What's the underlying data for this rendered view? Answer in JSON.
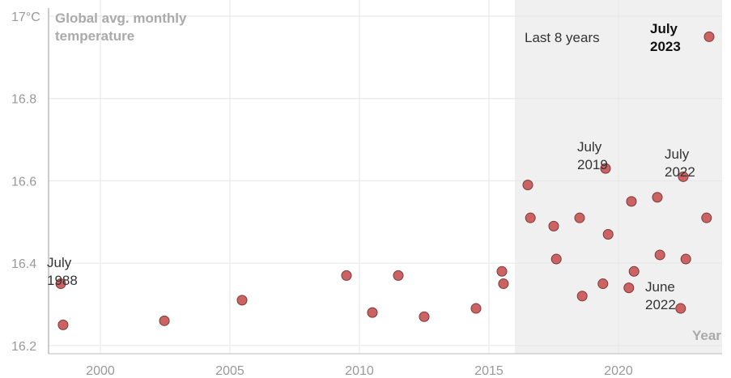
{
  "chart_data": {
    "type": "scatter",
    "title": "Global avg. monthly temperature",
    "x_label": "Year",
    "x": [
      1998.47,
      1998.56,
      2002.47,
      2005.47,
      2009.5,
      2010.5,
      2011.5,
      2012.5,
      2014.5,
      2015.5,
      2015.56,
      2016.5,
      2016.6,
      2017.5,
      2017.6,
      2018.5,
      2018.6,
      2019.5,
      2019.6,
      2019.4,
      2020.5,
      2020.6,
      2020.4,
      2021.5,
      2021.6,
      2022.5,
      2022.6,
      2022.4,
      2023.5,
      2023.4
    ],
    "series": [
      {
        "name": "Global avg. monthly temperature",
        "color": "#cd6262",
        "values": [
          16.35,
          16.25,
          16.26,
          16.31,
          16.37,
          16.28,
          16.37,
          16.27,
          16.29,
          16.38,
          16.35,
          16.59,
          16.51,
          16.49,
          16.41,
          16.51,
          16.32,
          16.63,
          16.47,
          16.35,
          16.55,
          16.38,
          16.34,
          16.56,
          16.42,
          16.61,
          16.41,
          16.29,
          16.95,
          16.51
        ]
      }
    ],
    "xlim": [
      1998,
      2024
    ],
    "ylim": [
      16.18,
      17.0
    ],
    "xticks": [
      2000,
      2005,
      2010,
      2015,
      2020
    ],
    "yticks": [
      16.2,
      16.4,
      16.6,
      16.8,
      {
        "value": 17,
        "label": "17°C"
      }
    ],
    "grid": true,
    "highlight": {
      "start": 2016,
      "label": "Last 8 years"
    },
    "annotations": [
      "July 1988",
      "July 2019",
      "July 2022",
      "June 2022",
      "July 2023"
    ]
  }
}
